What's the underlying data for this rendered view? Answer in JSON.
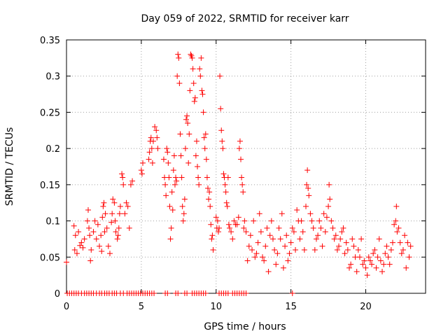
{
  "chart_data": {
    "type": "scatter",
    "title": "Day 059 of 2022, SRMTID for receiver karr",
    "xlabel": "GPS time / hours",
    "ylabel": "SRMTID / TECUs",
    "xlim": [
      0,
      24
    ],
    "ylim": [
      0,
      0.35
    ],
    "xticks": [
      0,
      5,
      10,
      15,
      20
    ],
    "xtick_labels": [
      "0",
      "5",
      "10",
      "15",
      "20"
    ],
    "yticks": [
      0,
      0.05,
      0.1,
      0.15,
      0.2,
      0.25,
      0.3,
      0.35
    ],
    "ytick_labels": [
      "0",
      "0.05",
      "0.1",
      "0.15",
      "0.2",
      "0.25",
      "0.3",
      "0.35"
    ],
    "grid": true,
    "marker": "plus",
    "color": "#ff0000",
    "series": [
      {
        "name": "SRMTID",
        "points": [
          [
            0.0,
            0.043
          ],
          [
            0.5,
            0.093
          ],
          [
            0.55,
            0.06
          ],
          [
            0.6,
            0.08
          ],
          [
            0.7,
            0.055
          ],
          [
            0.8,
            0.085
          ],
          [
            0.9,
            0.066
          ],
          [
            1.0,
            0.07
          ],
          [
            1.1,
            0.063
          ],
          [
            1.2,
            0.075
          ],
          [
            1.4,
            0.1
          ],
          [
            1.45,
            0.115
          ],
          [
            1.5,
            0.09
          ],
          [
            1.55,
            0.08
          ],
          [
            1.6,
            0.045
          ],
          [
            1.65,
            0.06
          ],
          [
            1.8,
            0.085
          ],
          [
            1.9,
            0.1
          ],
          [
            2.0,
            0.075
          ],
          [
            2.1,
            0.095
          ],
          [
            2.2,
            0.065
          ],
          [
            2.3,
            0.08
          ],
          [
            2.35,
            0.058
          ],
          [
            2.4,
            0.105
          ],
          [
            2.45,
            0.12
          ],
          [
            2.5,
            0.125
          ],
          [
            2.55,
            0.085
          ],
          [
            2.6,
            0.11
          ],
          [
            2.7,
            0.09
          ],
          [
            2.8,
            0.065
          ],
          [
            2.9,
            0.055
          ],
          [
            3.0,
            0.098
          ],
          [
            3.05,
            0.11
          ],
          [
            3.1,
            0.13
          ],
          [
            3.2,
            0.125
          ],
          [
            3.25,
            0.1
          ],
          [
            3.3,
            0.085
          ],
          [
            3.4,
            0.075
          ],
          [
            3.45,
            0.08
          ],
          [
            3.5,
            0.09
          ],
          [
            3.55,
            0.11
          ],
          [
            3.6,
            0.12
          ],
          [
            3.7,
            0.165
          ],
          [
            3.75,
            0.16
          ],
          [
            3.8,
            0.15
          ],
          [
            3.9,
            0.11
          ],
          [
            4.0,
            0.125
          ],
          [
            4.1,
            0.12
          ],
          [
            4.2,
            0.09
          ],
          [
            4.3,
            0.15
          ],
          [
            4.4,
            0.155
          ],
          [
            5.0,
            0.17
          ],
          [
            5.05,
            0.165
          ],
          [
            5.1,
            0.18
          ],
          [
            5.5,
            0.185
          ],
          [
            5.55,
            0.195
          ],
          [
            5.6,
            0.21
          ],
          [
            5.65,
            0.215
          ],
          [
            5.7,
            0.2
          ],
          [
            5.75,
            0.18
          ],
          [
            5.8,
            0.21
          ],
          [
            5.9,
            0.23
          ],
          [
            6.0,
            0.225
          ],
          [
            6.05,
            0.215
          ],
          [
            6.1,
            0.2
          ],
          [
            6.5,
            0.185
          ],
          [
            6.55,
            0.16
          ],
          [
            6.6,
            0.15
          ],
          [
            6.65,
            0.135
          ],
          [
            6.7,
            0.2
          ],
          [
            6.75,
            0.195
          ],
          [
            6.8,
            0.18
          ],
          [
            6.85,
            0.16
          ],
          [
            6.9,
            0.12
          ],
          [
            6.95,
            0.075
          ],
          [
            7.0,
            0.09
          ],
          [
            7.05,
            0.14
          ],
          [
            7.1,
            0.115
          ],
          [
            7.15,
            0.17
          ],
          [
            7.2,
            0.19
          ],
          [
            7.25,
            0.15
          ],
          [
            7.3,
            0.16
          ],
          [
            7.35,
            0.155
          ],
          [
            7.4,
            0.3
          ],
          [
            7.45,
            0.33
          ],
          [
            7.5,
            0.325
          ],
          [
            7.55,
            0.29
          ],
          [
            7.6,
            0.22
          ],
          [
            7.65,
            0.19
          ],
          [
            7.7,
            0.16
          ],
          [
            7.75,
            0.12
          ],
          [
            7.8,
            0.1
          ],
          [
            7.85,
            0.11
          ],
          [
            7.9,
            0.13
          ],
          [
            7.95,
            0.2
          ],
          [
            8.0,
            0.24
          ],
          [
            8.05,
            0.245
          ],
          [
            8.1,
            0.235
          ],
          [
            8.15,
            0.18
          ],
          [
            8.2,
            0.22
          ],
          [
            8.25,
            0.28
          ],
          [
            8.3,
            0.33
          ],
          [
            8.35,
            0.328
          ],
          [
            8.4,
            0.325
          ],
          [
            8.45,
            0.31
          ],
          [
            8.5,
            0.29
          ],
          [
            8.55,
            0.265
          ],
          [
            8.6,
            0.27
          ],
          [
            8.65,
            0.19
          ],
          [
            8.7,
            0.21
          ],
          [
            8.75,
            0.175
          ],
          [
            8.8,
            0.16
          ],
          [
            8.85,
            0.15
          ],
          [
            8.9,
            0.31
          ],
          [
            8.95,
            0.3
          ],
          [
            9.0,
            0.325
          ],
          [
            9.05,
            0.28
          ],
          [
            9.1,
            0.275
          ],
          [
            9.15,
            0.25
          ],
          [
            9.2,
            0.215
          ],
          [
            9.25,
            0.2
          ],
          [
            9.3,
            0.22
          ],
          [
            9.35,
            0.185
          ],
          [
            9.4,
            0.16
          ],
          [
            9.45,
            0.145
          ],
          [
            9.5,
            0.13
          ],
          [
            9.55,
            0.14
          ],
          [
            9.6,
            0.12
          ],
          [
            9.65,
            0.095
          ],
          [
            9.7,
            0.075
          ],
          [
            9.75,
            0.08
          ],
          [
            9.8,
            0.06
          ],
          [
            10.0,
            0.105
          ],
          [
            10.05,
            0.09
          ],
          [
            10.1,
            0.1
          ],
          [
            10.15,
            0.085
          ],
          [
            10.2,
            0.09
          ],
          [
            10.25,
            0.3
          ],
          [
            10.3,
            0.255
          ],
          [
            10.35,
            0.225
          ],
          [
            10.4,
            0.21
          ],
          [
            10.45,
            0.2
          ],
          [
            10.5,
            0.165
          ],
          [
            10.55,
            0.16
          ],
          [
            10.6,
            0.15
          ],
          [
            10.65,
            0.14
          ],
          [
            10.7,
            0.125
          ],
          [
            10.75,
            0.12
          ],
          [
            10.8,
            0.16
          ],
          [
            10.85,
            0.095
          ],
          [
            10.9,
            0.09
          ],
          [
            11.0,
            0.085
          ],
          [
            11.1,
            0.075
          ],
          [
            11.2,
            0.1
          ],
          [
            11.3,
            0.095
          ],
          [
            11.4,
            0.095
          ],
          [
            11.5,
            0.105
          ],
          [
            11.55,
            0.2
          ],
          [
            11.6,
            0.21
          ],
          [
            11.65,
            0.185
          ],
          [
            11.7,
            0.16
          ],
          [
            11.75,
            0.15
          ],
          [
            11.8,
            0.14
          ],
          [
            11.85,
            0.09
          ],
          [
            11.9,
            0.1
          ],
          [
            12.0,
            0.085
          ],
          [
            12.1,
            0.045
          ],
          [
            12.2,
            0.065
          ],
          [
            12.3,
            0.08
          ],
          [
            12.4,
            0.06
          ],
          [
            12.5,
            0.1
          ],
          [
            12.6,
            0.05
          ],
          [
            12.7,
            0.055
          ],
          [
            12.8,
            0.07
          ],
          [
            12.9,
            0.11
          ],
          [
            13.0,
            0.085
          ],
          [
            13.1,
            0.05
          ],
          [
            13.2,
            0.045
          ],
          [
            13.3,
            0.065
          ],
          [
            13.4,
            0.09
          ],
          [
            13.5,
            0.03
          ],
          [
            13.6,
            0.08
          ],
          [
            13.7,
            0.1
          ],
          [
            13.8,
            0.075
          ],
          [
            13.9,
            0.06
          ],
          [
            14.0,
            0.04
          ],
          [
            14.1,
            0.055
          ],
          [
            14.2,
            0.09
          ],
          [
            14.3,
            0.075
          ],
          [
            14.4,
            0.11
          ],
          [
            14.5,
            0.035
          ],
          [
            14.6,
            0.065
          ],
          [
            14.7,
            0.08
          ],
          [
            14.8,
            0.045
          ],
          [
            14.9,
            0.055
          ],
          [
            15.0,
            0.07
          ],
          [
            15.1,
            0.09
          ],
          [
            15.2,
            0.085
          ],
          [
            15.3,
            0.06
          ],
          [
            15.4,
            0.115
          ],
          [
            15.5,
            0.1
          ],
          [
            15.6,
            0.075
          ],
          [
            15.7,
            0.1
          ],
          [
            15.8,
            0.085
          ],
          [
            15.9,
            0.06
          ],
          [
            16.0,
            0.12
          ],
          [
            16.05,
            0.15
          ],
          [
            16.1,
            0.17
          ],
          [
            16.15,
            0.145
          ],
          [
            16.2,
            0.135
          ],
          [
            16.3,
            0.11
          ],
          [
            16.4,
            0.1
          ],
          [
            16.5,
            0.09
          ],
          [
            16.6,
            0.06
          ],
          [
            16.7,
            0.075
          ],
          [
            16.8,
            0.08
          ],
          [
            16.9,
            0.1
          ],
          [
            17.0,
            0.09
          ],
          [
            17.1,
            0.065
          ],
          [
            17.2,
            0.11
          ],
          [
            17.3,
            0.085
          ],
          [
            17.4,
            0.105
          ],
          [
            17.5,
            0.12
          ],
          [
            17.55,
            0.15
          ],
          [
            17.6,
            0.13
          ],
          [
            17.7,
            0.1
          ],
          [
            17.8,
            0.09
          ],
          [
            17.9,
            0.075
          ],
          [
            18.0,
            0.08
          ],
          [
            18.1,
            0.06
          ],
          [
            18.2,
            0.065
          ],
          [
            18.3,
            0.075
          ],
          [
            18.4,
            0.085
          ],
          [
            18.5,
            0.09
          ],
          [
            18.6,
            0.055
          ],
          [
            18.7,
            0.07
          ],
          [
            18.8,
            0.06
          ],
          [
            18.9,
            0.035
          ],
          [
            19.0,
            0.04
          ],
          [
            19.1,
            0.075
          ],
          [
            19.2,
            0.065
          ],
          [
            19.3,
            0.05
          ],
          [
            19.4,
            0.03
          ],
          [
            19.5,
            0.06
          ],
          [
            19.6,
            0.05
          ],
          [
            19.7,
            0.075
          ],
          [
            19.8,
            0.04
          ],
          [
            19.9,
            0.045
          ],
          [
            20.0,
            0.035
          ],
          [
            20.1,
            0.025
          ],
          [
            20.2,
            0.05
          ],
          [
            20.3,
            0.045
          ],
          [
            20.4,
            0.04
          ],
          [
            20.5,
            0.055
          ],
          [
            20.6,
            0.06
          ],
          [
            20.7,
            0.035
          ],
          [
            20.8,
            0.05
          ],
          [
            20.9,
            0.075
          ],
          [
            21.0,
            0.045
          ],
          [
            21.1,
            0.03
          ],
          [
            21.2,
            0.04
          ],
          [
            21.3,
            0.055
          ],
          [
            21.4,
            0.065
          ],
          [
            21.5,
            0.05
          ],
          [
            21.6,
            0.04
          ],
          [
            21.7,
            0.06
          ],
          [
            21.8,
            0.07
          ],
          [
            21.9,
            0.095
          ],
          [
            22.0,
            0.1
          ],
          [
            22.05,
            0.12
          ],
          [
            22.1,
            0.085
          ],
          [
            22.2,
            0.09
          ],
          [
            22.3,
            0.07
          ],
          [
            22.4,
            0.055
          ],
          [
            22.5,
            0.06
          ],
          [
            22.6,
            0.08
          ],
          [
            22.7,
            0.035
          ],
          [
            22.8,
            0.07
          ],
          [
            22.9,
            0.05
          ],
          [
            23.0,
            0.065
          ]
        ],
        "zero_points_x": [
          0.05,
          0.2,
          0.35,
          0.5,
          0.65,
          0.8,
          1.0,
          1.2,
          1.35,
          1.5,
          1.65,
          1.8,
          2.0,
          2.2,
          2.35,
          2.55,
          2.7,
          2.85,
          3.05,
          3.2,
          3.35,
          3.6,
          3.8,
          4.05,
          4.2,
          4.35,
          4.5,
          4.65,
          4.8,
          4.95,
          5.1,
          5.25,
          5.4,
          5.55,
          5.7,
          5.85,
          6.6,
          6.75,
          7.3,
          7.45,
          7.9,
          8.05,
          8.4,
          8.55,
          8.7,
          8.85,
          9.0,
          9.15,
          9.3,
          10.2,
          10.35,
          10.5,
          10.65,
          10.8,
          11.1,
          11.25,
          11.4,
          11.55,
          11.7,
          11.85,
          12.0,
          15.1
        ]
      }
    ]
  }
}
